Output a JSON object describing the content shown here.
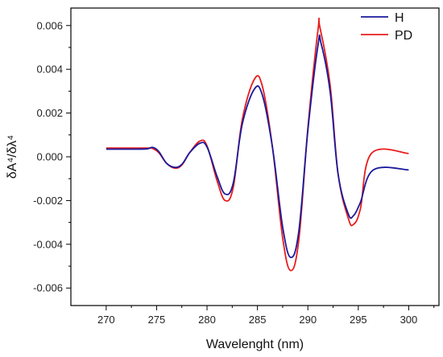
{
  "chart_data": {
    "type": "line",
    "title": "",
    "xlabel": "Wavelenght (nm)",
    "ylabel": "δA⁴/δλ⁴",
    "xlim": [
      266.5,
      303
    ],
    "ylim": [
      -0.0068,
      0.0068
    ],
    "x_ticks": [
      270,
      275,
      280,
      285,
      290,
      295,
      300
    ],
    "x_tick_labels": [
      "270",
      "275",
      "280",
      "285",
      "290",
      "295",
      "300"
    ],
    "y_ticks": [
      -0.006,
      -0.004,
      -0.002,
      0.0,
      0.002,
      0.004,
      0.006
    ],
    "y_tick_labels": [
      "-0.006",
      "-0.004",
      "-0.002",
      "0.000",
      "0.002",
      "0.004",
      "0.006"
    ],
    "grid": false,
    "legend_position": "top-right",
    "series": [
      {
        "name": "H",
        "color": "#1a1a9c",
        "points": [
          [
            270,
            0.00035
          ],
          [
            272,
            0.00035
          ],
          [
            274,
            0.00036
          ],
          [
            274.6,
            0.00043
          ],
          [
            275.2,
            0.00025
          ],
          [
            276,
            -0.0003
          ],
          [
            276.8,
            -0.00048
          ],
          [
            277.5,
            -0.00035
          ],
          [
            278.3,
            0.0002
          ],
          [
            279.3,
            0.00062
          ],
          [
            280,
            0.00045
          ],
          [
            281,
            -0.0009
          ],
          [
            281.8,
            -0.0017
          ],
          [
            282.6,
            -0.0012
          ],
          [
            283.5,
            0.0015
          ],
          [
            284.7,
            0.0031
          ],
          [
            285.5,
            0.0028
          ],
          [
            286.5,
            0.0004
          ],
          [
            287.5,
            -0.0032
          ],
          [
            288.3,
            -0.0046
          ],
          [
            289.1,
            -0.0034
          ],
          [
            290,
            0.0012
          ],
          [
            291,
            0.0051
          ],
          [
            291.3,
            0.0052
          ],
          [
            292.2,
            0.003
          ],
          [
            293,
            -0.0008
          ],
          [
            294,
            -0.0026
          ],
          [
            294.5,
            -0.0027
          ],
          [
            295.2,
            -0.0021
          ],
          [
            296.5,
            -0.0006
          ],
          [
            300,
            -0.0006
          ]
        ]
      },
      {
        "name": "PD",
        "color": "#e81c1c",
        "points": [
          [
            270,
            0.0004
          ],
          [
            274,
            0.0004
          ],
          [
            274.5,
            0.0004
          ],
          [
            275.2,
            0.0002
          ],
          [
            276,
            -0.0003
          ],
          [
            276.8,
            -0.00052
          ],
          [
            277.5,
            -0.00038
          ],
          [
            278.3,
            0.0002
          ],
          [
            279.3,
            0.00072
          ],
          [
            280,
            0.0005
          ],
          [
            281,
            -0.0011
          ],
          [
            281.8,
            -0.002
          ],
          [
            282.6,
            -0.0014
          ],
          [
            283.5,
            0.0017
          ],
          [
            284.7,
            0.00355
          ],
          [
            285.5,
            0.0032
          ],
          [
            286.5,
            0.0004
          ],
          [
            287.5,
            -0.0037
          ],
          [
            288.3,
            -0.0052
          ],
          [
            289.1,
            -0.0038
          ],
          [
            290,
            0.0013
          ],
          [
            291,
            0.0058
          ],
          [
            291.2,
            0.0059
          ],
          [
            292.2,
            0.0033
          ],
          [
            293,
            -0.0008
          ],
          [
            294,
            -0.0028
          ],
          [
            294.5,
            -0.0031
          ],
          [
            295.2,
            -0.0024
          ],
          [
            296.3,
            0.00015
          ],
          [
            300,
            0.00015
          ]
        ]
      }
    ]
  }
}
